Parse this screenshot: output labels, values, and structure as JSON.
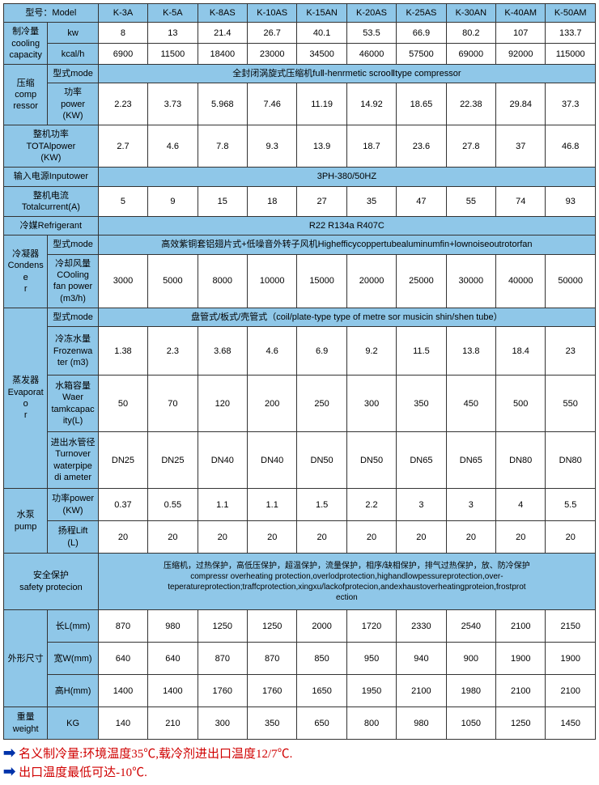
{
  "colors": {
    "header_bg": "#8fc7e8",
    "border": "#333333",
    "text": "#000000",
    "footer_text": "#d00000",
    "arrow": "#0033aa"
  },
  "models": [
    "K-3A",
    "K-5A",
    "K-8AS",
    "K-10AS",
    "K-15AN",
    "K-20AS",
    "K-25AS",
    "K-30AN",
    "K-40AM",
    "K-50AM"
  ],
  "labels": {
    "model": "型号：Model",
    "cooling_cap": "制冷量\ncooling\ncapacity",
    "kw": "kw",
    "kcal": "kcal/h",
    "compressor": "压缩\ncomp\nressor",
    "mode": "型式mode",
    "power_kw": "功率\npower\n(KW)",
    "total_power": "整机功率\nTOTAlpower\n(KW)",
    "input_power": "输入电源Inputower",
    "total_current": "整机电流\nTotalcurrent(A)",
    "refrigerant": "冷媒Refrigerant",
    "condenser": "冷凝器\nCondense\nr",
    "cooling_fan": "冷却风量\nCOoling\nfan power\n(m3/h)",
    "evaporator": "蒸发器\nEvaporato\nr",
    "frozen_water": "冷冻水量\nFrozenwa\nter (m3)",
    "tank_cap": "水箱容量\nWaer\ntamkcapac\nity(L)",
    "pipe_dia": "进出水管径\nTurnover\nwaterpipe\ndi ameter",
    "pump": "水泵\npump",
    "pump_power": "功率power\n(KW)",
    "lift": "扬程Lift\n(L)",
    "safety": "安全保护\nsafety protecion",
    "dimensions": "外形尺寸",
    "length": "长L(mm)",
    "width": "宽W(mm)",
    "height": "高H(mm)",
    "weight": "重量\nweight",
    "kg": "KG"
  },
  "values": {
    "cooling_kw": [
      "8",
      "13",
      "21.4",
      "26.7",
      "40.1",
      "53.5",
      "66.9",
      "80.2",
      "107",
      "133.7"
    ],
    "cooling_kcal": [
      "6900",
      "11500",
      "18400",
      "23000",
      "34500",
      "46000",
      "57500",
      "69000",
      "92000",
      "115000"
    ],
    "compressor_mode": "全封闭涡旋式压缩机fuⅡ-henrmetic scrooⅡtype compressor",
    "compressor_power": [
      "2.23",
      "3.73",
      "5.968",
      "7.46",
      "11.19",
      "14.92",
      "18.65",
      "22.38",
      "29.84",
      "37.3"
    ],
    "total_power": [
      "2.7",
      "4.6",
      "7.8",
      "9.3",
      "13.9",
      "18.7",
      "23.6",
      "27.8",
      "37",
      "46.8"
    ],
    "input_power": "3PH-380/50HZ",
    "total_current": [
      "5",
      "9",
      "15",
      "18",
      "27",
      "35",
      "47",
      "55",
      "74",
      "93"
    ],
    "refrigerant": "R22 R134a R407C",
    "condenser_mode": "高效紫铜套铝翅片式+低噪音外转子风机Highefficycoppertubealuminumfin+lownoiseoutrotorfan",
    "cooling_fan": [
      "3000",
      "5000",
      "8000",
      "10000",
      "15000",
      "20000",
      "25000",
      "30000",
      "40000",
      "50000"
    ],
    "evap_mode": "盘管式/板式/壳管式（coil/plate-type type of metre sor musicin shin/shen tube）",
    "frozen_water": [
      "1.38",
      "2.3",
      "3.68",
      "4.6",
      "6.9",
      "9.2",
      "11.5",
      "13.8",
      "18.4",
      "23"
    ],
    "tank_cap": [
      "50",
      "70",
      "120",
      "200",
      "250",
      "300",
      "350",
      "450",
      "500",
      "550"
    ],
    "pipe_dia": [
      "DN25",
      "DN25",
      "DN40",
      "DN40",
      "DN50",
      "DN50",
      "DN65",
      "DN65",
      "DN80",
      "DN80"
    ],
    "pump_power": [
      "0.37",
      "0.55",
      "1.1",
      "1.1",
      "1.5",
      "2.2",
      "3",
      "3",
      "4",
      "5.5"
    ],
    "lift": [
      "20",
      "20",
      "20",
      "20",
      "20",
      "20",
      "20",
      "20",
      "20",
      "20"
    ],
    "safety": "压缩机，过热保护，高低压保护，超温保护，流量保护，相序/缺相保护，排气过热保护，放、防冷保护\ncompressr overheating protection,overlodprotection,highandlowpessureprotection,over-\nteperatureprotection;traffcprotection,xingxu/lackofprotecion,andexhaustoverheatingproteion,frostprot\nection",
    "length": [
      "870",
      "980",
      "1250",
      "1250",
      "2000",
      "1720",
      "2330",
      "2540",
      "2100",
      "2150"
    ],
    "width": [
      "640",
      "640",
      "870",
      "870",
      "850",
      "950",
      "940",
      "900",
      "1900",
      "1900"
    ],
    "height": [
      "1400",
      "1400",
      "1760",
      "1760",
      "1650",
      "1950",
      "2100",
      "1980",
      "2100",
      "2100"
    ],
    "weight": [
      "140",
      "210",
      "300",
      "350",
      "650",
      "800",
      "980",
      "1050",
      "1250",
      "1450"
    ]
  },
  "footer": {
    "line1": "名义制冷量:环境温度35℃,载冷剂进出口温度12/7℃.",
    "line2": "出口温度最低可达-10℃."
  }
}
